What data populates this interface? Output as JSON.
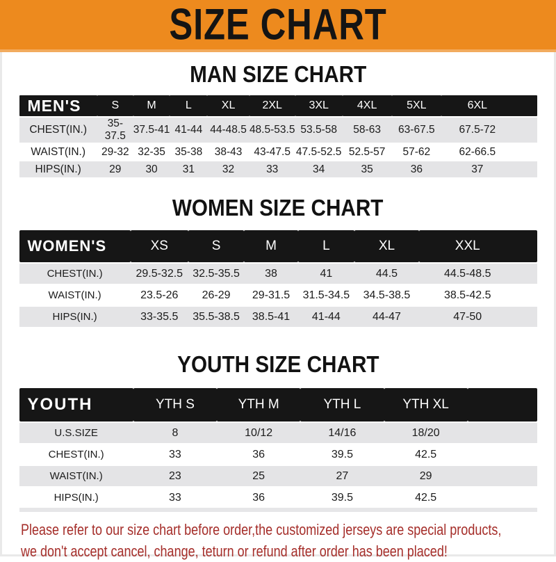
{
  "banner": {
    "title": "SIZE CHART"
  },
  "men": {
    "section_title": "MAN SIZE CHART",
    "table": {
      "header_label": "MEN'S",
      "columns": [
        "S",
        "M",
        "L",
        "XL",
        "2XL",
        "3XL",
        "4XL",
        "5XL",
        "6XL"
      ],
      "rows": [
        {
          "label": "CHEST(IN.)",
          "values": [
            "35-37.5",
            "37.5-41",
            "41-44",
            "44-48.5",
            "48.5-53.5",
            "53.5-58",
            "58-63",
            "63-67.5",
            "67.5-72"
          ]
        },
        {
          "label": "WAIST(IN.)",
          "values": [
            "29-32",
            "32-35",
            "35-38",
            "38-43",
            "43-47.5",
            "47.5-52.5",
            "52.5-57",
            "57-62",
            "62-66.5"
          ]
        },
        {
          "label": "HIPS(IN.)",
          "values": [
            "29",
            "30",
            "31",
            "32",
            "33",
            "34",
            "35",
            "36",
            "37"
          ]
        }
      ]
    }
  },
  "women": {
    "section_title": "WOMEN SIZE CHART",
    "table": {
      "header_label": "WOMEN'S",
      "columns": [
        "XS",
        "S",
        "M",
        "L",
        "XL",
        "XXL"
      ],
      "rows": [
        {
          "label": "CHEST(IN.)",
          "values": [
            "29.5-32.5",
            "32.5-35.5",
            "38",
            "41",
            "44.5",
            "44.5-48.5"
          ]
        },
        {
          "label": "WAIST(IN.)",
          "values": [
            "23.5-26",
            "26-29",
            "29-31.5",
            "31.5-34.5",
            "34.5-38.5",
            "38.5-42.5"
          ]
        },
        {
          "label": "HIPS(IN.)",
          "values": [
            "33-35.5",
            "35.5-38.5",
            "38.5-41",
            "41-44",
            "44-47",
            "47-50"
          ]
        }
      ]
    }
  },
  "youth": {
    "section_title": "YOUTH SIZE CHART",
    "table": {
      "header_label": "YOUTH",
      "columns": [
        "YTH S",
        "YTH M",
        "YTH L",
        "YTH XL"
      ],
      "rows": [
        {
          "label": "U.S.SIZE",
          "values": [
            "8",
            "10/12",
            "14/16",
            "18/20"
          ]
        },
        {
          "label": "CHEST(IN.)",
          "values": [
            "33",
            "36",
            "39.5",
            "42.5"
          ]
        },
        {
          "label": "WAIST(IN.)",
          "values": [
            "23",
            "25",
            "27",
            "29"
          ]
        },
        {
          "label": "HIPS(IN.)",
          "values": [
            "33",
            "36",
            "39.5",
            "42.5"
          ]
        }
      ]
    }
  },
  "footer": {
    "line1": "Please refer to our size chart before order,the customized jerseys are special products,",
    "line2": "we don't accept cancel, change, teturn or refund after order has been placed!"
  },
  "colors": {
    "banner_bg": "#ed8a1e",
    "banner_text": "#141414",
    "table_header_bg": "#161616",
    "table_header_text": "#ffffff",
    "shaded_row_bg": "#e4e4e6",
    "footer_text": "#a52e2a"
  }
}
